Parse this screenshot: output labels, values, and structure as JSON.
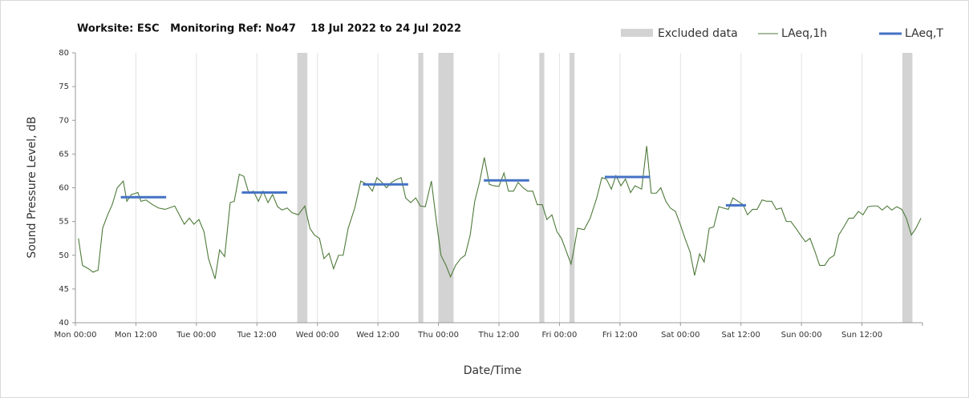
{
  "chart_data": {
    "type": "line",
    "title": "Worksite: ESC   Monitoring Ref: No47    18 Jul 2022 to 24 Jul 2022",
    "x_label": "Date/Time",
    "y_label": "Sound Pressure Level, dB",
    "xlim": [
      0,
      168
    ],
    "ylim": [
      40,
      80
    ],
    "xticks": [
      {
        "value": 0,
        "label": "Mon 00:00"
      },
      {
        "value": 12,
        "label": "Mon 12:00"
      },
      {
        "value": 24,
        "label": "Tue 00:00"
      },
      {
        "value": 36,
        "label": "Tue 12:00"
      },
      {
        "value": 48,
        "label": "Wed 00:00"
      },
      {
        "value": 60,
        "label": "Wed 12:00"
      },
      {
        "value": 72,
        "label": "Thu 00:00"
      },
      {
        "value": 84,
        "label": "Thu 12:00"
      },
      {
        "value": 96,
        "label": "Fri 00:00"
      },
      {
        "value": 108,
        "label": "Fri 12:00"
      },
      {
        "value": 120,
        "label": "Sat 00:00"
      },
      {
        "value": 132,
        "label": "Sat 12:00"
      },
      {
        "value": 144,
        "label": "Sun 00:00"
      },
      {
        "value": 156,
        "label": "Sun 12:00"
      }
    ],
    "yticks": [
      40,
      45,
      50,
      55,
      60,
      65,
      70,
      75,
      80
    ],
    "grid": true,
    "excluded": {
      "name": "Excluded data",
      "color": "#d3d3d3",
      "ranges": [
        [
          44,
          46
        ],
        [
          68,
          69
        ],
        [
          72,
          75
        ],
        [
          92,
          93
        ],
        [
          98,
          99
        ],
        [
          164,
          166
        ]
      ]
    },
    "series": [
      {
        "name": "LAeq,1h",
        "color": "#4e7a3a",
        "x": [
          0.6,
          1.4,
          2.6,
          3.5,
          4.5,
          5.4,
          6.4,
          7.3,
          8.3,
          9.5,
          10.2,
          11.1,
          12.4,
          13,
          14,
          15.3,
          16.5,
          17.8,
          19.7,
          21.6,
          22.6,
          23.5,
          24.5,
          25.5,
          26.4,
          27.7,
          28.6,
          29.6,
          30.7,
          31.5,
          32.5,
          33.4,
          34.4,
          35.3,
          36.3,
          37.2,
          38.2,
          39.1,
          40.1,
          41,
          42,
          43,
          44.2,
          45.5,
          46.5,
          47.4,
          48.4,
          49.3,
          50.3,
          51.2,
          52.2,
          53.1,
          54.1,
          55.4,
          56.6,
          57.9,
          58.9,
          59.8,
          60.8,
          61.7,
          62.7,
          63.6,
          64.6,
          65.5,
          66.5,
          67.5,
          68.4,
          69.4,
          70.6,
          71.6,
          72.5,
          73.5,
          74.4,
          75.4,
          76.4,
          77.3,
          78.3,
          79.2,
          80.2,
          81.1,
          82.1,
          83,
          84,
          85,
          85.9,
          86.9,
          87.8,
          88.8,
          89.7,
          90.7,
          91.6,
          92.6,
          93.5,
          94.5,
          95.5,
          96.4,
          97.4,
          98.3,
          98.9,
          99.6,
          100.9,
          102.1,
          103.4,
          104.4,
          105.3,
          106.3,
          107.2,
          108.2,
          109.1,
          110.1,
          111,
          112.3,
          113.3,
          114.2,
          115.2,
          116.1,
          117.1,
          118,
          119,
          120,
          120.9,
          121.9,
          122.8,
          123.8,
          124.7,
          125.7,
          126.6,
          127.6,
          128.5,
          129.5,
          130.4,
          131.4,
          132.4,
          133.3,
          134.3,
          135.2,
          136.2,
          137.1,
          138.1,
          139,
          140,
          141,
          141.9,
          142.9,
          143.8,
          144.8,
          145.7,
          146.7,
          147.6,
          148.6,
          149.5,
          150.5,
          151.4,
          152.4,
          153.4,
          154.3,
          155.3,
          156.2,
          157.2,
          158.1,
          159.1,
          160,
          161,
          161.9,
          162.9,
          163.9,
          164.8,
          165.8,
          166.7,
          167.7
        ],
        "values": [
          52.5,
          48.5,
          48,
          47.5,
          47.8,
          54,
          56,
          57.5,
          60,
          61,
          58,
          59,
          59.3,
          58,
          58.2,
          57.5,
          57,
          56.8,
          57.3,
          54.6,
          55.5,
          54.6,
          55.3,
          53.5,
          49.5,
          46.5,
          50.8,
          49.8,
          57.8,
          58,
          62,
          61.7,
          59.2,
          59.5,
          58,
          59.5,
          57.8,
          59,
          57.2,
          56.7,
          57,
          56.3,
          56,
          57.3,
          54,
          53,
          52.5,
          49.5,
          50.3,
          48,
          50,
          50,
          54,
          57,
          61,
          60.5,
          59.5,
          61.5,
          60.8,
          60,
          60.8,
          61.2,
          61.5,
          58.5,
          57.8,
          58.5,
          57.3,
          57.2,
          61,
          55,
          50,
          48.5,
          46.8,
          48.5,
          49.5,
          50,
          53,
          58,
          61,
          64.5,
          60.5,
          60.3,
          60.2,
          62.2,
          59.5,
          59.5,
          60.8,
          60,
          59.5,
          59.5,
          57.5,
          57.5,
          55.3,
          56,
          53.5,
          52.5,
          50.5,
          48.7,
          51,
          54,
          53.8,
          55.5,
          58.5,
          61.5,
          61.3,
          59.8,
          61.8,
          60.3,
          61.3,
          59.3,
          60.3,
          59.8,
          66.2,
          59.2,
          59.2,
          60,
          58,
          57,
          56.5,
          54.5,
          52.5,
          50.5,
          47,
          50.2,
          49,
          54,
          54.2,
          57.2,
          57,
          56.8,
          58.5,
          58,
          57.5,
          56,
          56.8,
          56.8,
          58.2,
          58,
          58,
          56.8,
          57,
          55,
          55,
          54,
          53,
          52,
          52.5,
          50.5,
          48.5,
          48.5,
          49.5,
          50,
          53,
          54.2,
          55.5,
          55.5,
          56.5,
          56,
          57.2,
          57.3,
          57.3,
          56.7,
          57.3,
          56.7,
          57.2,
          56.8,
          55.5,
          53,
          54,
          55.5
        ]
      }
    ],
    "laeq_t": {
      "name": "LAeq,T",
      "color": "#4472c4",
      "periods": [
        {
          "start": 9,
          "end": 18,
          "value": 58.6
        },
        {
          "start": 33,
          "end": 42,
          "value": 59.3
        },
        {
          "start": 57,
          "end": 66,
          "value": 60.5
        },
        {
          "start": 81,
          "end": 90,
          "value": 61.1
        },
        {
          "start": 105,
          "end": 114,
          "value": 61.6
        },
        {
          "start": 129,
          "end": 133,
          "value": 57.4
        }
      ]
    }
  }
}
